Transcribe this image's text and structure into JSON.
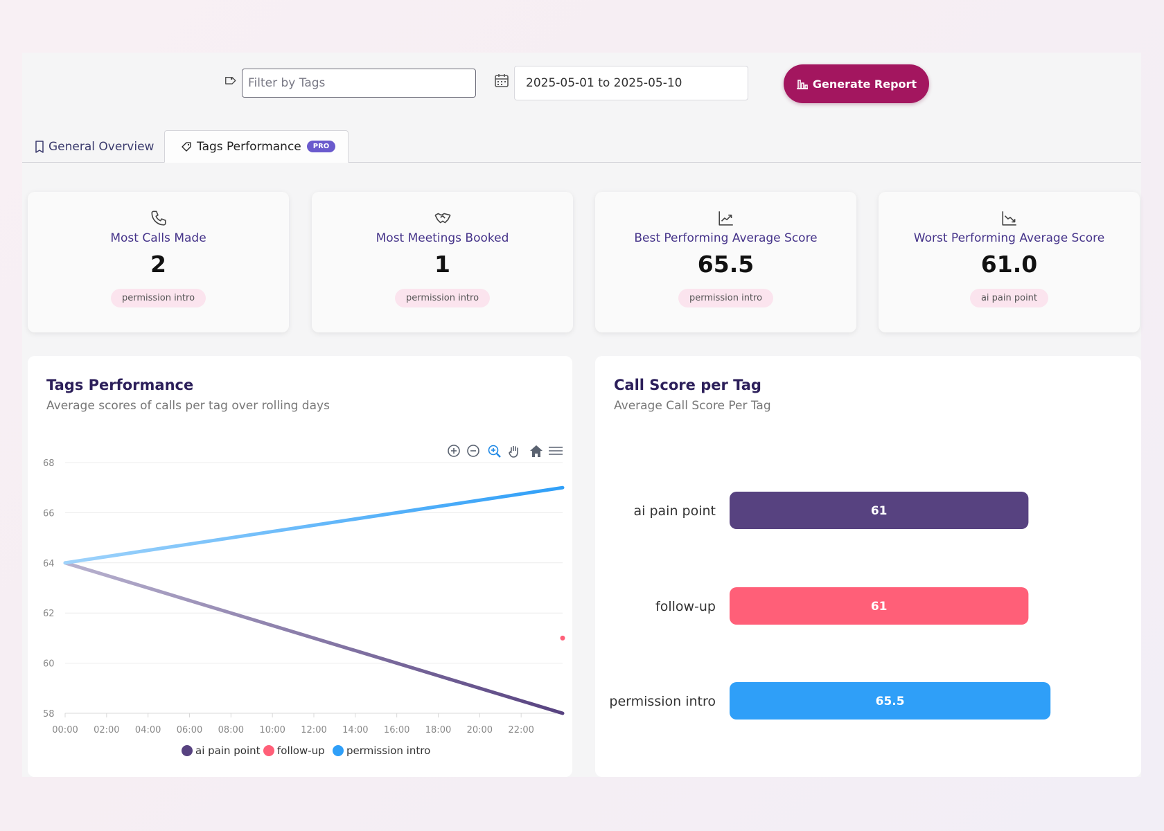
{
  "toolbar": {
    "filter_placeholder": "Filter by Tags",
    "date_range": "2025-05-01 to 2025-05-10",
    "generate_label": "Generate Report"
  },
  "tabs": [
    {
      "label": "General Overview",
      "icon": "document-icon",
      "active": false
    },
    {
      "label": "Tags Performance",
      "icon": "tag-icon",
      "active": true,
      "badge": "PRO"
    }
  ],
  "cards": [
    {
      "title": "Most Calls Made",
      "value": "2",
      "tag": "permission intro",
      "icon": "phone-icon"
    },
    {
      "title": "Most Meetings Booked",
      "value": "1",
      "tag": "permission intro",
      "icon": "handshake-icon"
    },
    {
      "title": "Best Performing Average Score",
      "value": "65.5",
      "tag": "permission intro",
      "icon": "trending-up-icon"
    },
    {
      "title": "Worst Performing Average Score",
      "value": "61.0",
      "tag": "ai pain point",
      "icon": "trending-down-icon"
    }
  ],
  "line_panel": {
    "title": "Tags Performance",
    "subtitle": "Average scores of calls per tag over rolling days"
  },
  "bar_panel": {
    "title": "Call Score per Tag",
    "subtitle": "Average Call Score Per Tag"
  },
  "colors": {
    "accent": "#a3165f",
    "ai_pain_point": "#574280",
    "follow_up": "#ff5f78",
    "permission_intro": "#2f9ff8"
  },
  "chart_data": [
    {
      "type": "line",
      "title": "Tags Performance",
      "subtitle": "Average scores of calls per tag over rolling days",
      "x_ticks": [
        "00:00",
        "02:00",
        "04:00",
        "06:00",
        "08:00",
        "10:00",
        "12:00",
        "14:00",
        "16:00",
        "18:00",
        "20:00",
        "22:00"
      ],
      "y_ticks": [
        58,
        60,
        62,
        64,
        66,
        68
      ],
      "ylim": [
        58,
        68
      ],
      "xlim_hours": [
        0,
        24
      ],
      "series": [
        {
          "name": "ai pain point",
          "color": "#574280",
          "points": [
            [
              0,
              64
            ],
            [
              24,
              58
            ]
          ]
        },
        {
          "name": "follow-up",
          "color": "#ff5f78",
          "points": [
            [
              24,
              61
            ]
          ]
        },
        {
          "name": "permission intro",
          "color": "#2f9ff8",
          "points": [
            [
              0,
              64
            ],
            [
              24,
              67
            ]
          ]
        }
      ],
      "legend": "bottom",
      "toolbar_icons": [
        "zoom-in-icon",
        "zoom-out-icon",
        "zoom-select-icon",
        "pan-icon",
        "home-icon",
        "menu-icon"
      ]
    },
    {
      "type": "bar",
      "orientation": "horizontal",
      "title": "Call Score per Tag",
      "subtitle": "Average Call Score Per Tag",
      "categories": [
        "ai pain point",
        "follow-up",
        "permission intro"
      ],
      "values": [
        61,
        61,
        65.5
      ],
      "labels": [
        "61",
        "61",
        "65.5"
      ],
      "colors": [
        "#574280",
        "#ff5f78",
        "#2f9ff8"
      ]
    }
  ]
}
